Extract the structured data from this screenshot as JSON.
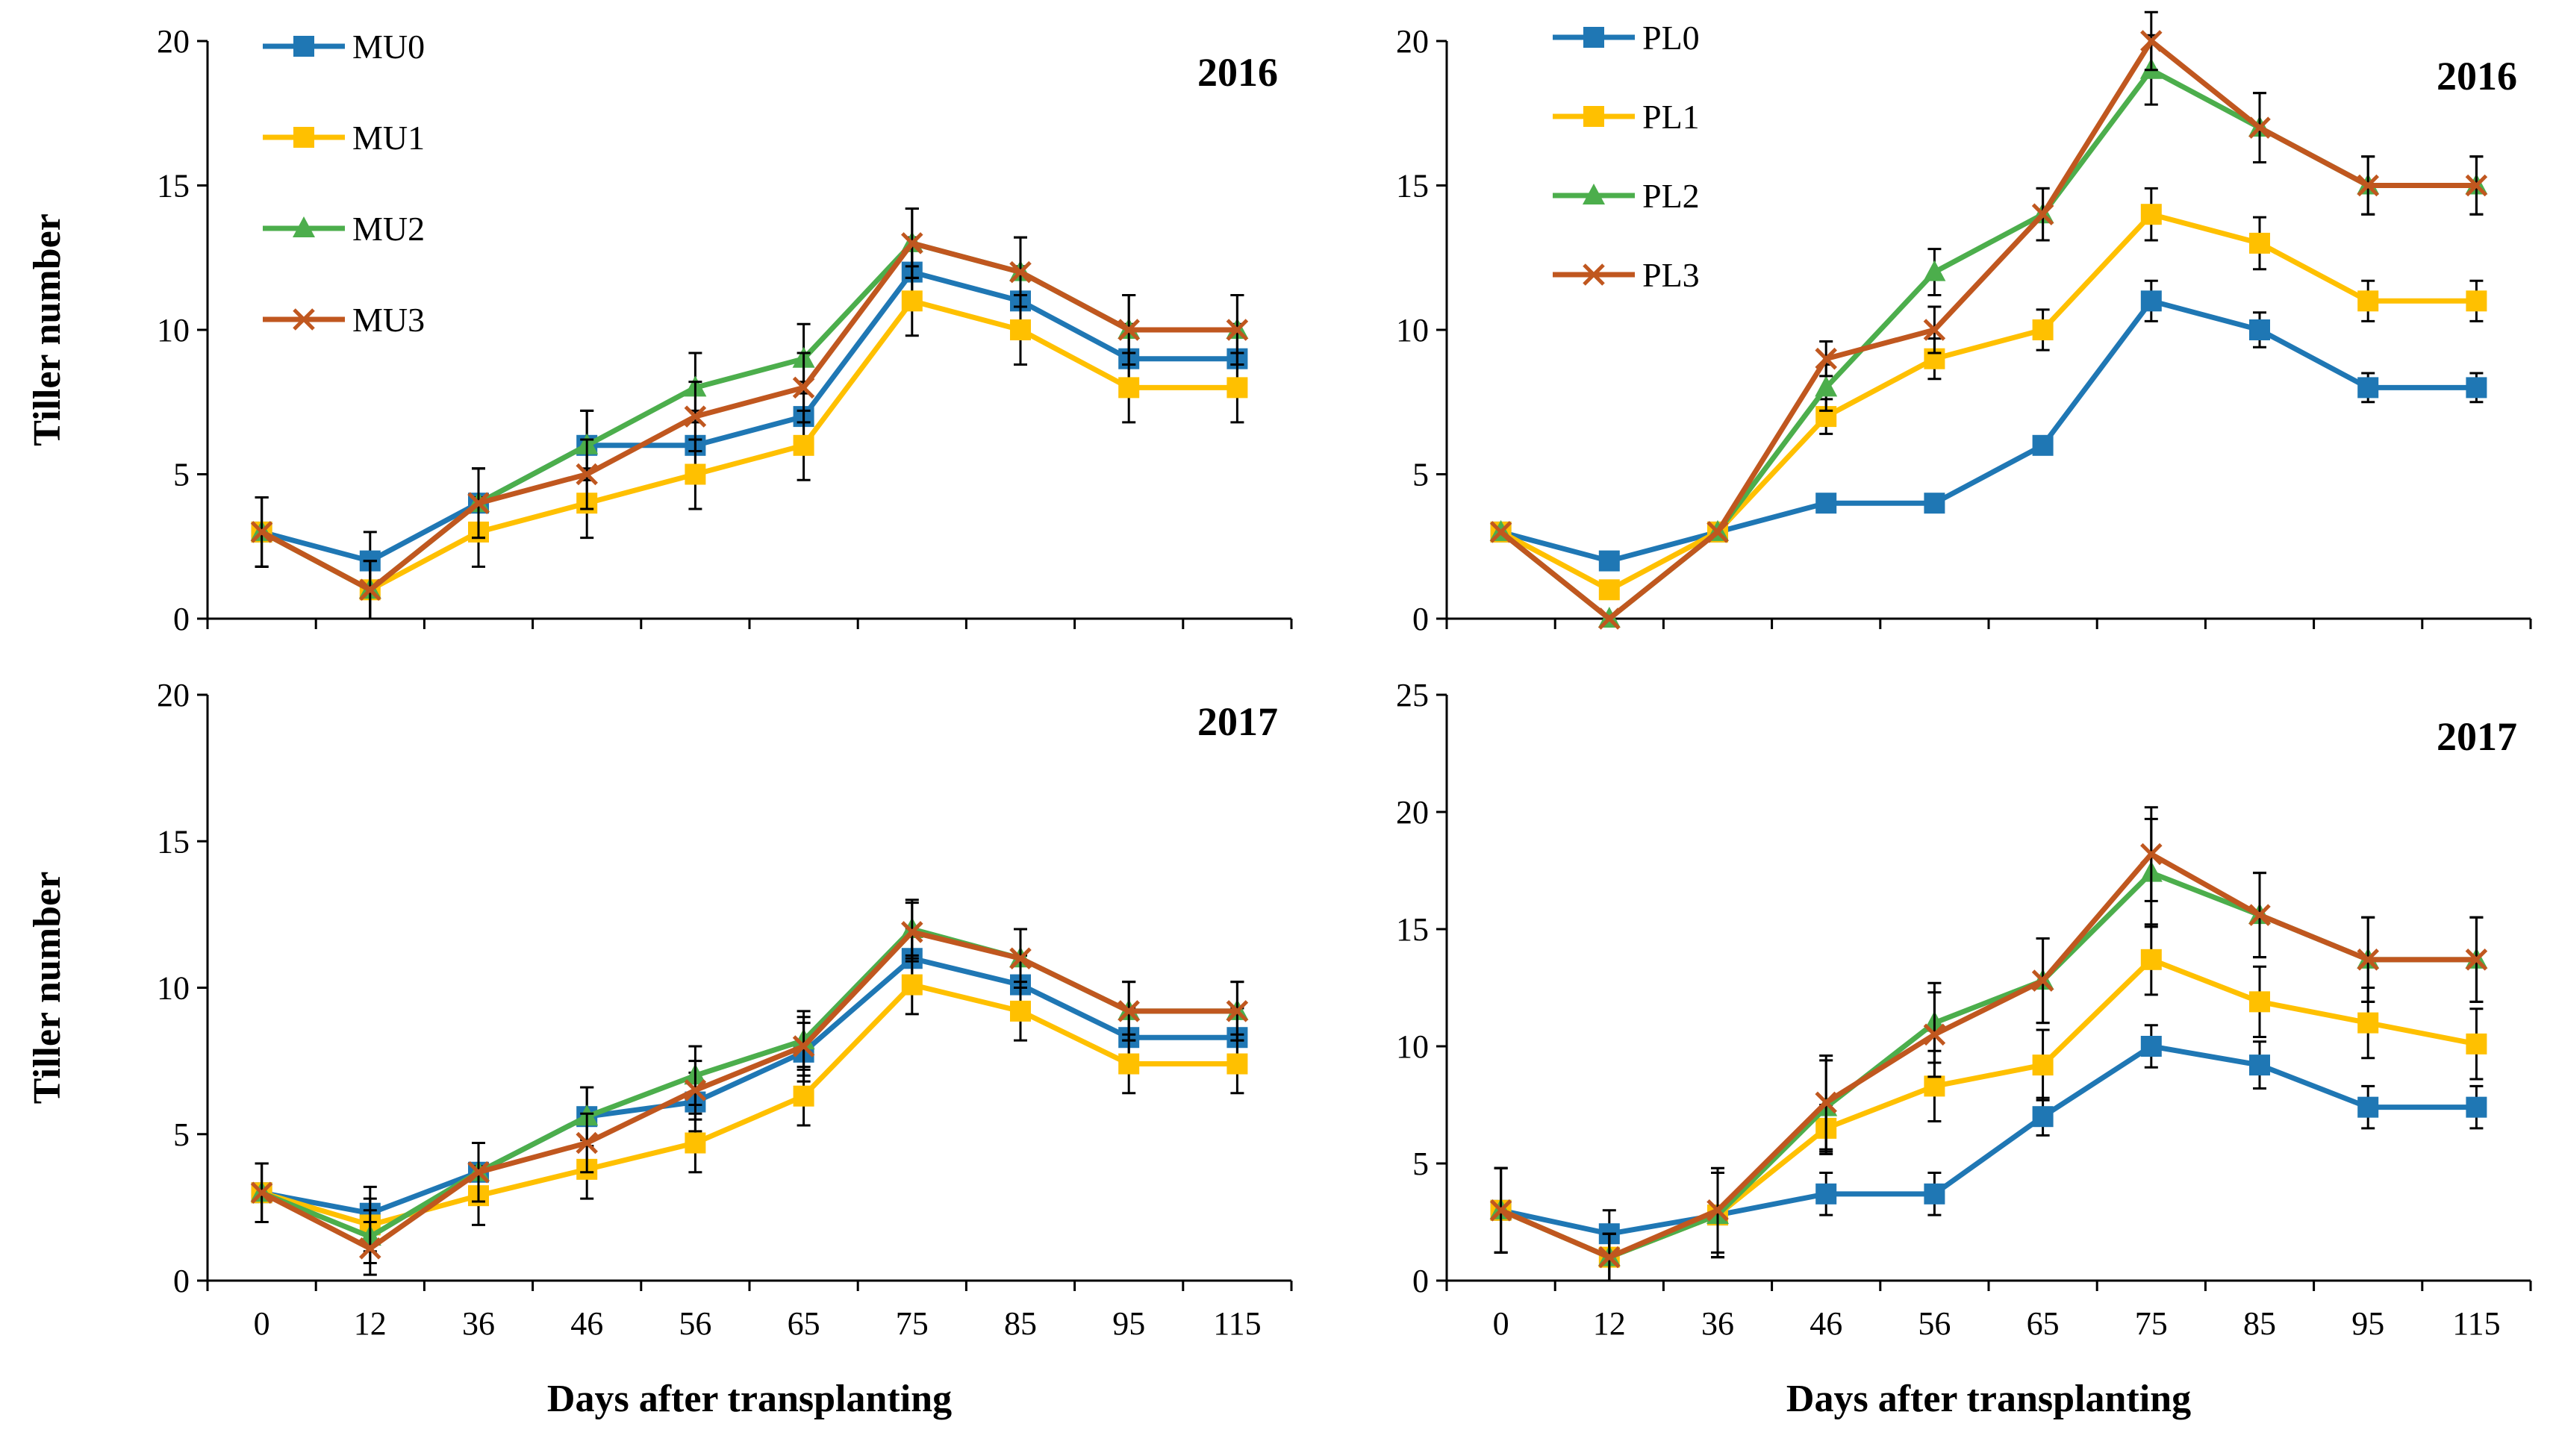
{
  "chart_data": [
    {
      "type": "line",
      "id": "mu2016",
      "title": "2016",
      "xlabel": "",
      "ylabel": "Tiller number",
      "ylim": [
        0,
        20
      ],
      "yticks": [
        "0",
        "5",
        "10",
        "15",
        "20"
      ],
      "categories": [
        "0",
        "12",
        "36",
        "46",
        "56",
        "65",
        "75",
        "85",
        "95",
        "115"
      ],
      "show_x_ticks": false,
      "legend": "top-left",
      "series": [
        {
          "name": "MU0",
          "color": "#1f77b4",
          "marker": "square",
          "values": [
            3,
            2,
            4,
            6,
            6,
            7,
            12,
            11,
            9,
            9
          ],
          "err": [
            1.2,
            1.0,
            1.2,
            1.2,
            1.2,
            1.2,
            1.2,
            1.2,
            1.2,
            1.2
          ]
        },
        {
          "name": "MU1",
          "color": "#ffc000",
          "marker": "square",
          "values": [
            3,
            1,
            3,
            4,
            5,
            6,
            11,
            10,
            8,
            8
          ],
          "err": [
            1.2,
            1.0,
            1.2,
            1.2,
            1.2,
            1.2,
            1.2,
            1.2,
            1.2,
            1.2
          ]
        },
        {
          "name": "MU2",
          "color": "#4cae4c",
          "marker": "triangle",
          "values": [
            3,
            1,
            4,
            6,
            8,
            9,
            13,
            12,
            10,
            10
          ],
          "err": [
            1.2,
            1.0,
            1.2,
            1.2,
            1.2,
            1.2,
            1.2,
            1.2,
            1.2,
            1.2
          ]
        },
        {
          "name": "MU3",
          "color": "#c0571f",
          "marker": "x",
          "values": [
            3,
            1,
            4,
            5,
            7,
            8,
            13,
            12,
            10,
            10
          ],
          "err": [
            1.2,
            1.0,
            1.2,
            1.2,
            1.2,
            1.2,
            1.2,
            1.2,
            1.2,
            1.2
          ]
        }
      ]
    },
    {
      "type": "line",
      "id": "pl2016",
      "title": "2016",
      "xlabel": "",
      "ylabel": "",
      "ylim": [
        0,
        20
      ],
      "yticks": [
        "0",
        "5",
        "10",
        "15",
        "20"
      ],
      "categories": [
        "0",
        "12",
        "36",
        "46",
        "56",
        "65",
        "75",
        "85",
        "95",
        "115"
      ],
      "show_x_ticks": false,
      "legend": "top-left",
      "series": [
        {
          "name": "PL0",
          "color": "#1f77b4",
          "marker": "square",
          "values": [
            3,
            2,
            3,
            4,
            4,
            6,
            11,
            10,
            8,
            8
          ],
          "err": [
            0,
            0,
            0,
            0,
            0,
            0,
            0.7,
            0.6,
            0.5,
            0.5
          ]
        },
        {
          "name": "PL1",
          "color": "#ffc000",
          "marker": "square",
          "values": [
            3,
            1,
            3,
            7,
            9,
            10,
            14,
            13,
            11,
            11
          ],
          "err": [
            0,
            0,
            0,
            0.6,
            0.7,
            0.7,
            0.9,
            0.9,
            0.7,
            0.7
          ]
        },
        {
          "name": "PL2",
          "color": "#4cae4c",
          "marker": "triangle",
          "values": [
            3,
            0,
            3,
            8,
            12,
            14,
            19,
            17,
            15,
            15
          ],
          "err": [
            0,
            0,
            0,
            0.8,
            0.8,
            0.9,
            1.2,
            1.2,
            1.0,
            1.0
          ]
        },
        {
          "name": "PL3",
          "color": "#c0571f",
          "marker": "x",
          "values": [
            3,
            0,
            3,
            9,
            10,
            14,
            20,
            17,
            15,
            15
          ],
          "err": [
            0,
            0,
            0,
            0.6,
            0.8,
            0.9,
            1.0,
            1.2,
            1.0,
            1.0
          ]
        }
      ]
    },
    {
      "type": "line",
      "id": "mu2017",
      "title": "2017",
      "xlabel": "Days after transplanting",
      "ylabel": "Tiller number",
      "ylim": [
        0,
        20
      ],
      "yticks": [
        "0",
        "5",
        "10",
        "15",
        "20"
      ],
      "categories": [
        "0",
        "12",
        "36",
        "46",
        "56",
        "65",
        "75",
        "85",
        "95",
        "115"
      ],
      "show_x_ticks": true,
      "legend": "none",
      "series": [
        {
          "name": "MU0",
          "color": "#1f77b4",
          "marker": "square",
          "values": [
            3,
            2.3,
            3.7,
            5.6,
            6.1,
            7.8,
            11,
            10.1,
            8.3,
            8.3
          ],
          "err": [
            1,
            0.9,
            1,
            1,
            1,
            1,
            1,
            1,
            1,
            1
          ]
        },
        {
          "name": "MU1",
          "color": "#ffc000",
          "marker": "square",
          "values": [
            3,
            1.9,
            2.9,
            3.8,
            4.7,
            6.3,
            10.1,
            9.2,
            7.4,
            7.4
          ],
          "err": [
            1,
            0.9,
            1,
            1,
            1,
            1,
            1,
            1,
            1,
            1
          ]
        },
        {
          "name": "MU2",
          "color": "#4cae4c",
          "marker": "triangle",
          "values": [
            3,
            1.5,
            3.7,
            5.6,
            7,
            8.2,
            12,
            11,
            9.2,
            9.2
          ],
          "err": [
            1,
            0.9,
            1,
            1,
            1,
            1,
            1,
            1,
            1,
            1
          ]
        },
        {
          "name": "MU3",
          "color": "#c0571f",
          "marker": "x",
          "values": [
            3,
            1.1,
            3.7,
            4.7,
            6.5,
            8,
            11.9,
            11,
            9.2,
            9.2
          ],
          "err": [
            1,
            0.9,
            1,
            1,
            1,
            1,
            1,
            1,
            1,
            1
          ]
        }
      ]
    },
    {
      "type": "line",
      "id": "pl2017",
      "title": "2017",
      "xlabel": "Days after transplanting",
      "ylabel": "",
      "ylim": [
        0,
        25
      ],
      "yticks": [
        "0",
        "5",
        "10",
        "15",
        "20",
        "25"
      ],
      "categories": [
        "0",
        "12",
        "36",
        "46",
        "56",
        "65",
        "75",
        "85",
        "95",
        "115"
      ],
      "show_x_ticks": true,
      "legend": "none",
      "series": [
        {
          "name": "PL0",
          "color": "#1f77b4",
          "marker": "square",
          "values": [
            3,
            2,
            2.8,
            3.7,
            3.7,
            7,
            10,
            9.2,
            7.4,
            7.4
          ],
          "err": [
            1.8,
            1,
            1.8,
            0.9,
            0.9,
            0.8,
            0.9,
            1,
            0.9,
            0.9
          ]
        },
        {
          "name": "PL1",
          "color": "#ffc000",
          "marker": "square",
          "values": [
            3,
            1,
            2.8,
            6.5,
            8.3,
            9.2,
            13.7,
            11.9,
            11,
            10.1
          ],
          "err": [
            1.8,
            1,
            1.8,
            1,
            1.5,
            1.5,
            1.5,
            1.5,
            1.5,
            1.5
          ]
        },
        {
          "name": "PL2",
          "color": "#4cae4c",
          "marker": "triangle",
          "values": [
            3,
            1,
            2.8,
            7.4,
            11,
            12.8,
            17.4,
            15.6,
            13.7,
            13.7
          ],
          "err": [
            1.8,
            1,
            1.8,
            2,
            1.7,
            1.8,
            2.3,
            1.8,
            1.8,
            1.8
          ]
        },
        {
          "name": "PL3",
          "color": "#c0571f",
          "marker": "x",
          "values": [
            3,
            1,
            3,
            7.6,
            10.5,
            12.8,
            18.2,
            15.6,
            13.7,
            13.7
          ],
          "err": [
            1.8,
            1,
            1.8,
            2,
            1.8,
            1.8,
            2,
            1.8,
            1.8,
            1.8
          ]
        }
      ]
    }
  ]
}
